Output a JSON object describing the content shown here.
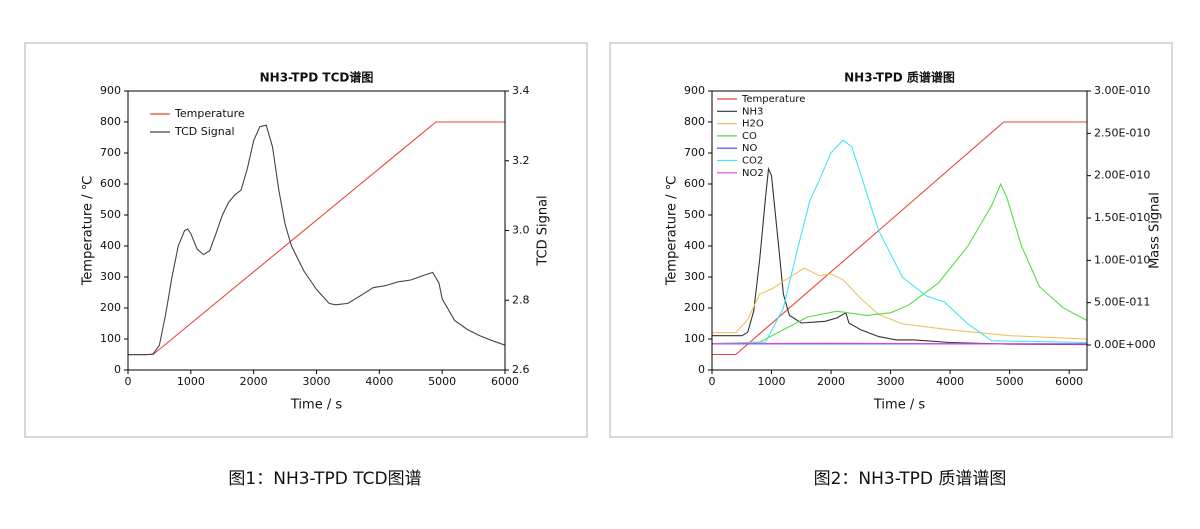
{
  "chart_data": [
    {
      "type": "line",
      "title": "NH3-TPD TCD谱图",
      "caption": "图1：NH3-TPD TCD图谱",
      "xlabel": "Time / s",
      "ylabel": "Temperature / ℃",
      "y2label": "TCD Signal",
      "xlim": [
        0,
        6000
      ],
      "xticks": [
        0,
        1000,
        2000,
        3000,
        4000,
        5000,
        6000
      ],
      "ylim": [
        0,
        900
      ],
      "yticks": [
        0,
        100,
        200,
        300,
        400,
        500,
        600,
        700,
        800,
        900
      ],
      "y2lim": [
        2.6,
        3.4
      ],
      "y2ticks": [
        2.6,
        2.8,
        {
          "value": 3,
          "label": "3.0"
        },
        3.2,
        3.4
      ],
      "legend": "upper left",
      "series": [
        {
          "name": "Temperature",
          "color": "#e8463a",
          "x": [
            0,
            400,
            4900,
            6000
          ],
          "values": [
            50,
            50,
            800,
            800
          ]
        },
        {
          "name": "TCD Signal",
          "color": "#444444",
          "axis": "y2",
          "x": [
            0,
            300,
            400,
            500,
            600,
            700,
            800,
            900,
            950,
            1000,
            1100,
            1200,
            1300,
            1400,
            1500,
            1600,
            1700,
            1800,
            1900,
            2000,
            2100,
            2200,
            2300,
            2400,
            2500,
            2600,
            2800,
            3000,
            3200,
            3300,
            3500,
            3700,
            3900,
            4100,
            4300,
            4500,
            4700,
            4850,
            4950,
            5000,
            5200,
            5400,
            5600,
            5800,
            6000
          ],
          "values": [
            2.644,
            2.644,
            2.646,
            2.671,
            2.76,
            2.867,
            2.956,
            3.0,
            3.004,
            2.991,
            2.947,
            2.931,
            2.942,
            2.991,
            3.044,
            3.08,
            3.102,
            3.116,
            3.178,
            3.258,
            3.298,
            3.302,
            3.24,
            3.116,
            3.018,
            2.956,
            2.884,
            2.831,
            2.791,
            2.787,
            2.791,
            2.813,
            2.836,
            2.842,
            2.853,
            2.858,
            2.871,
            2.88,
            2.849,
            2.804,
            2.742,
            2.716,
            2.698,
            2.684,
            2.671
          ]
        }
      ]
    },
    {
      "type": "line",
      "title": "NH3-TPD 质谱谱图",
      "caption": "图2：NH3-TPD 质谱谱图",
      "xlabel": "Time / s",
      "ylabel": "Temperature / ℃",
      "y2label": "Mass Signal",
      "xlim": [
        0,
        6300
      ],
      "xticks": [
        0,
        1000,
        2000,
        3000,
        4000,
        5000,
        6000
      ],
      "ylim": [
        0,
        900
      ],
      "yticks": [
        0,
        100,
        200,
        300,
        400,
        500,
        600,
        700,
        800,
        900
      ],
      "y2lim": [
        -2.95e-11,
        3e-10
      ],
      "y2ticks": [
        {
          "value": 0,
          "label": "0.00E+000"
        },
        {
          "value": 5e-11,
          "label": "5.00E-011"
        },
        {
          "value": 1e-10,
          "label": "1.00E-010"
        },
        {
          "value": 1.5e-10,
          "label": "1.50E-010"
        },
        {
          "value": 2e-10,
          "label": "2.00E-010"
        },
        {
          "value": 2.5e-10,
          "label": "2.50E-010"
        },
        {
          "value": 3e-10,
          "label": "3.00E-010"
        }
      ],
      "legend": "upper left",
      "series": [
        {
          "name": "Temperature",
          "color": "#e8463a",
          "x": [
            0,
            400,
            4900,
            6300
          ],
          "values": [
            50,
            50,
            800,
            800
          ]
        },
        {
          "name": "NH3",
          "color": "#333333",
          "axis": "y2",
          "x": [
            0,
            500,
            600,
            700,
            800,
            900,
            950,
            1000,
            1100,
            1200,
            1300,
            1500,
            1700,
            1900,
            2100,
            2250,
            2300,
            2500,
            2800,
            3100,
            3400,
            4000,
            5000,
            6300
          ],
          "values": [
            1.1e-11,
            1.1e-11,
            1.5e-11,
            4e-11,
            1e-10,
            1.75e-10,
            2.08e-10,
            2e-10,
            1.3e-10,
            6e-11,
            3.5e-11,
            2.6e-11,
            2.7e-11,
            2.8e-11,
            3.2e-11,
            3.8e-11,
            2.6e-11,
            1.8e-11,
            1e-11,
            6e-12,
            6e-12,
            3e-12,
            1e-12,
            5e-13
          ]
        },
        {
          "name": "H2O",
          "color": "#f0c060",
          "axis": "y2",
          "x": [
            0,
            400,
            600,
            800,
            1000,
            1300,
            1550,
            1800,
            2000,
            2200,
            2500,
            2800,
            3200,
            4000,
            5000,
            6300
          ],
          "values": [
            1.45e-11,
            1.45e-11,
            3e-11,
            6e-11,
            6.6e-11,
            8e-11,
            9.1e-11,
            8.2e-11,
            8.4e-11,
            7.7e-11,
            5.5e-11,
            3.6e-11,
            2.5e-11,
            1.8e-11,
            1.1e-11,
            7e-12
          ]
        },
        {
          "name": "CO",
          "color": "#55dd44",
          "axis": "y2",
          "x": [
            0,
            800,
            1200,
            1600,
            2100,
            2600,
            3000,
            3300,
            3800,
            4300,
            4700,
            4850,
            4950,
            5200,
            5500,
            5900,
            6300
          ],
          "values": [
            1.6e-12,
            3.5e-12,
            1.8e-11,
            3.3e-11,
            4e-11,
            3.5e-11,
            3.8e-11,
            4.7e-11,
            7.3e-11,
            1.17e-10,
            1.65e-10,
            1.9e-10,
            1.75e-10,
            1.17e-10,
            6.9e-11,
            4.4e-11,
            2.9e-11
          ]
        },
        {
          "name": "NO",
          "color": "#4040ff",
          "axis": "y2",
          "x": [
            0,
            6300
          ],
          "values": [
            1.5e-12,
            1.5e-12
          ]
        },
        {
          "name": "CO2",
          "color": "#40e8f0",
          "axis": "y2",
          "x": [
            0,
            900,
            1200,
            1450,
            1650,
            1800,
            2000,
            2200,
            2350,
            2550,
            2800,
            3200,
            3600,
            3900,
            4300,
            4700,
            6300
          ],
          "values": [
            1.6e-12,
            3.5e-12,
            4.4e-11,
            1.17e-10,
            1.72e-10,
            1.94e-10,
            2.27e-10,
            2.42e-10,
            2.34e-10,
            1.9e-10,
            1.35e-10,
            8e-11,
            5.8e-11,
            5.1e-11,
            2.5e-11,
            5e-12,
            3e-12
          ]
        },
        {
          "name": "NO2",
          "color": "#e040e0",
          "axis": "y2",
          "x": [
            0,
            2000,
            6300
          ],
          "values": [
            1.5e-12,
            2e-12,
            1e-12
          ]
        }
      ]
    }
  ]
}
